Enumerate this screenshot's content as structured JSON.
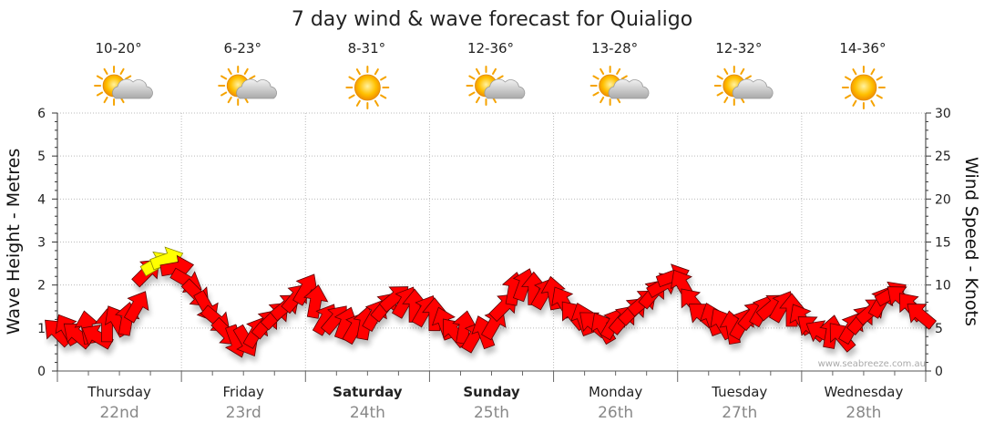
{
  "chart_data": {
    "type": "line",
    "title": "7 day wind & wave forecast for Quialigo",
    "ylabel_left": "Wave Height - Metres",
    "ylabel_right": "Wind Speed - Knots",
    "ylim_left": [
      0,
      6
    ],
    "ylim_right": [
      0,
      30
    ],
    "yticks_left": [
      "0",
      "1",
      "2",
      "3",
      "4",
      "5",
      "6"
    ],
    "yticks_right": [
      "0",
      "5",
      "10",
      "15",
      "20",
      "25",
      "30"
    ],
    "credit": "www.seabreeze.com.au",
    "days": [
      {
        "day": "Thursday",
        "date": "22nd",
        "temp": "10-20°",
        "icon": "partly-cloudy-icon",
        "bold": false
      },
      {
        "day": "Friday",
        "date": "23rd",
        "temp": "6-23°",
        "icon": "partly-cloudy-icon",
        "bold": false
      },
      {
        "day": "Saturday",
        "date": "24th",
        "temp": "8-31°",
        "icon": "sunny-icon",
        "bold": true
      },
      {
        "day": "Sunday",
        "date": "25th",
        "temp": "12-36°",
        "icon": "partly-cloudy-icon",
        "bold": true
      },
      {
        "day": "Monday",
        "date": "26th",
        "temp": "13-28°",
        "icon": "partly-cloudy-icon",
        "bold": false
      },
      {
        "day": "Tuesday",
        "date": "27th",
        "temp": "12-32°",
        "icon": "partly-cloudy-icon",
        "bold": false
      },
      {
        "day": "Wednesday",
        "date": "28th",
        "temp": "14-36°",
        "icon": "sunny-icon",
        "bold": false
      }
    ],
    "wind_series": {
      "name": "Wind Speed (knots)",
      "x_unit": "days from start",
      "points": [
        {
          "t": 0.0,
          "speed": 4.5,
          "dir": 135,
          "color": "#ff0000"
        },
        {
          "t": 0.08,
          "speed": 4.8,
          "dir": 120,
          "color": "#ff0000"
        },
        {
          "t": 0.16,
          "speed": 4.2,
          "dir": 140,
          "color": "#ff0000"
        },
        {
          "t": 0.24,
          "speed": 5.0,
          "dir": 100,
          "color": "#ff0000"
        },
        {
          "t": 0.32,
          "speed": 4.0,
          "dir": 150,
          "color": "#ff0000"
        },
        {
          "t": 0.4,
          "speed": 5.2,
          "dir": 90,
          "color": "#ff0000"
        },
        {
          "t": 0.48,
          "speed": 5.8,
          "dir": 120,
          "color": "#ff0000"
        },
        {
          "t": 0.56,
          "speed": 6.0,
          "dir": 80,
          "color": "#ff0000"
        },
        {
          "t": 0.64,
          "speed": 7.5,
          "dir": 60,
          "color": "#ff0000"
        },
        {
          "t": 0.72,
          "speed": 11.5,
          "dir": 45,
          "color": "#ff0000"
        },
        {
          "t": 0.8,
          "speed": 12.5,
          "dir": 30,
          "color": "#ffff00"
        },
        {
          "t": 0.88,
          "speed": 13.0,
          "dir": 20,
          "color": "#ffff00"
        },
        {
          "t": 0.96,
          "speed": 12.0,
          "dir": 10,
          "color": "#ff0000"
        },
        {
          "t": 1.04,
          "speed": 10.5,
          "dir": 330,
          "color": "#ff0000"
        },
        {
          "t": 1.12,
          "speed": 9.0,
          "dir": 315,
          "color": "#ff0000"
        },
        {
          "t": 1.2,
          "speed": 7.5,
          "dir": 300,
          "color": "#ff0000"
        },
        {
          "t": 1.28,
          "speed": 6.0,
          "dir": 320,
          "color": "#ff0000"
        },
        {
          "t": 1.36,
          "speed": 4.5,
          "dir": 315,
          "color": "#ff0000"
        },
        {
          "t": 1.44,
          "speed": 3.5,
          "dir": 290,
          "color": "#ff0000"
        },
        {
          "t": 1.52,
          "speed": 3.5,
          "dir": 300,
          "color": "#ff0000"
        },
        {
          "t": 1.6,
          "speed": 4.5,
          "dir": 60,
          "color": "#ff0000"
        },
        {
          "t": 1.68,
          "speed": 5.5,
          "dir": 50,
          "color": "#ff0000"
        },
        {
          "t": 1.76,
          "speed": 6.5,
          "dir": 45,
          "color": "#ff0000"
        },
        {
          "t": 1.84,
          "speed": 7.5,
          "dir": 40,
          "color": "#ff0000"
        },
        {
          "t": 1.92,
          "speed": 8.5,
          "dir": 50,
          "color": "#ff0000"
        },
        {
          "t": 2.0,
          "speed": 9.5,
          "dir": 60,
          "color": "#ff0000"
        },
        {
          "t": 2.08,
          "speed": 8.0,
          "dir": 80,
          "color": "#ff0000"
        },
        {
          "t": 2.16,
          "speed": 6.0,
          "dir": 60,
          "color": "#ff0000"
        },
        {
          "t": 2.24,
          "speed": 6.0,
          "dir": 50,
          "color": "#ff0000"
        },
        {
          "t": 2.32,
          "speed": 5.5,
          "dir": 70,
          "color": "#ff0000"
        },
        {
          "t": 2.4,
          "speed": 5.0,
          "dir": 60,
          "color": "#ff0000"
        },
        {
          "t": 2.48,
          "speed": 5.5,
          "dir": 80,
          "color": "#ff0000"
        },
        {
          "t": 2.56,
          "speed": 6.5,
          "dir": 60,
          "color": "#ff0000"
        },
        {
          "t": 2.64,
          "speed": 7.5,
          "dir": 50,
          "color": "#ff0000"
        },
        {
          "t": 2.72,
          "speed": 8.5,
          "dir": 40,
          "color": "#ff0000"
        },
        {
          "t": 2.8,
          "speed": 8.0,
          "dir": 60,
          "color": "#ff0000"
        },
        {
          "t": 2.88,
          "speed": 7.5,
          "dir": 90,
          "color": "#ff0000"
        },
        {
          "t": 2.96,
          "speed": 7.0,
          "dir": 60,
          "color": "#ff0000"
        },
        {
          "t": 3.04,
          "speed": 6.5,
          "dir": 90,
          "color": "#ff0000"
        },
        {
          "t": 3.12,
          "speed": 5.5,
          "dir": 110,
          "color": "#ff0000"
        },
        {
          "t": 3.2,
          "speed": 4.5,
          "dir": 130,
          "color": "#ff0000"
        },
        {
          "t": 3.28,
          "speed": 5.0,
          "dir": 80,
          "color": "#ff0000"
        },
        {
          "t": 3.36,
          "speed": 4.0,
          "dir": 60,
          "color": "#ff0000"
        },
        {
          "t": 3.44,
          "speed": 4.5,
          "dir": 110,
          "color": "#ff0000"
        },
        {
          "t": 3.52,
          "speed": 5.5,
          "dir": 60,
          "color": "#ff0000"
        },
        {
          "t": 3.6,
          "speed": 7.5,
          "dir": 45,
          "color": "#ff0000"
        },
        {
          "t": 3.68,
          "speed": 9.5,
          "dir": 80,
          "color": "#ff0000"
        },
        {
          "t": 3.76,
          "speed": 10.0,
          "dir": 70,
          "color": "#ff0000"
        },
        {
          "t": 3.84,
          "speed": 9.5,
          "dir": 90,
          "color": "#ff0000"
        },
        {
          "t": 3.92,
          "speed": 9.0,
          "dir": 60,
          "color": "#ff0000"
        },
        {
          "t": 4.0,
          "speed": 9.0,
          "dir": 100,
          "color": "#ff0000"
        },
        {
          "t": 4.08,
          "speed": 8.0,
          "dir": 120,
          "color": "#ff0000"
        },
        {
          "t": 4.16,
          "speed": 6.5,
          "dir": 130,
          "color": "#ff0000"
        },
        {
          "t": 4.24,
          "speed": 6.0,
          "dir": 110,
          "color": "#ff0000"
        },
        {
          "t": 4.32,
          "speed": 5.5,
          "dir": 140,
          "color": "#ff0000"
        },
        {
          "t": 4.4,
          "speed": 5.0,
          "dir": 120,
          "color": "#ff0000"
        },
        {
          "t": 4.48,
          "speed": 5.5,
          "dir": 60,
          "color": "#ff0000"
        },
        {
          "t": 4.56,
          "speed": 6.0,
          "dir": 50,
          "color": "#ff0000"
        },
        {
          "t": 4.64,
          "speed": 7.0,
          "dir": 45,
          "color": "#ff0000"
        },
        {
          "t": 4.72,
          "speed": 8.0,
          "dir": 40,
          "color": "#ff0000"
        },
        {
          "t": 4.8,
          "speed": 9.0,
          "dir": 50,
          "color": "#ff0000"
        },
        {
          "t": 4.88,
          "speed": 10.0,
          "dir": 30,
          "color": "#ff0000"
        },
        {
          "t": 4.96,
          "speed": 11.0,
          "dir": 20,
          "color": "#ff0000"
        },
        {
          "t": 5.04,
          "speed": 10.0,
          "dir": 120,
          "color": "#ff0000"
        },
        {
          "t": 5.12,
          "speed": 8.0,
          "dir": 130,
          "color": "#ff0000"
        },
        {
          "t": 5.2,
          "speed": 6.5,
          "dir": 140,
          "color": "#ff0000"
        },
        {
          "t": 5.28,
          "speed": 6.0,
          "dir": 110,
          "color": "#ff0000"
        },
        {
          "t": 5.36,
          "speed": 5.5,
          "dir": 120,
          "color": "#ff0000"
        },
        {
          "t": 5.44,
          "speed": 5.0,
          "dir": 100,
          "color": "#ff0000"
        },
        {
          "t": 5.52,
          "speed": 5.5,
          "dir": 60,
          "color": "#ff0000"
        },
        {
          "t": 5.6,
          "speed": 6.5,
          "dir": 50,
          "color": "#ff0000"
        },
        {
          "t": 5.68,
          "speed": 7.0,
          "dir": 60,
          "color": "#ff0000"
        },
        {
          "t": 5.76,
          "speed": 7.5,
          "dir": 40,
          "color": "#ff0000"
        },
        {
          "t": 5.84,
          "speed": 7.5,
          "dir": 60,
          "color": "#ff0000"
        },
        {
          "t": 5.92,
          "speed": 7.0,
          "dir": 90,
          "color": "#ff0000"
        },
        {
          "t": 6.0,
          "speed": 6.0,
          "dir": 120,
          "color": "#ff0000"
        },
        {
          "t": 6.08,
          "speed": 5.0,
          "dir": 140,
          "color": "#ff0000"
        },
        {
          "t": 6.16,
          "speed": 4.5,
          "dir": 150,
          "color": "#ff0000"
        },
        {
          "t": 6.24,
          "speed": 4.5,
          "dir": 80,
          "color": "#ff0000"
        },
        {
          "t": 6.32,
          "speed": 4.0,
          "dir": 130,
          "color": "#ff0000"
        },
        {
          "t": 6.4,
          "speed": 5.0,
          "dir": 60,
          "color": "#ff0000"
        },
        {
          "t": 6.48,
          "speed": 6.0,
          "dir": 50,
          "color": "#ff0000"
        },
        {
          "t": 6.56,
          "speed": 7.0,
          "dir": 40,
          "color": "#ff0000"
        },
        {
          "t": 6.64,
          "speed": 8.0,
          "dir": 60,
          "color": "#ff0000"
        },
        {
          "t": 6.72,
          "speed": 9.0,
          "dir": 30,
          "color": "#ff0000"
        },
        {
          "t": 6.8,
          "speed": 8.5,
          "dir": 140,
          "color": "#ff0000"
        },
        {
          "t": 6.88,
          "speed": 7.5,
          "dir": 130,
          "color": "#ff0000"
        },
        {
          "t": 6.96,
          "speed": 6.5,
          "dir": 140,
          "color": "#ff0000"
        }
      ]
    }
  }
}
